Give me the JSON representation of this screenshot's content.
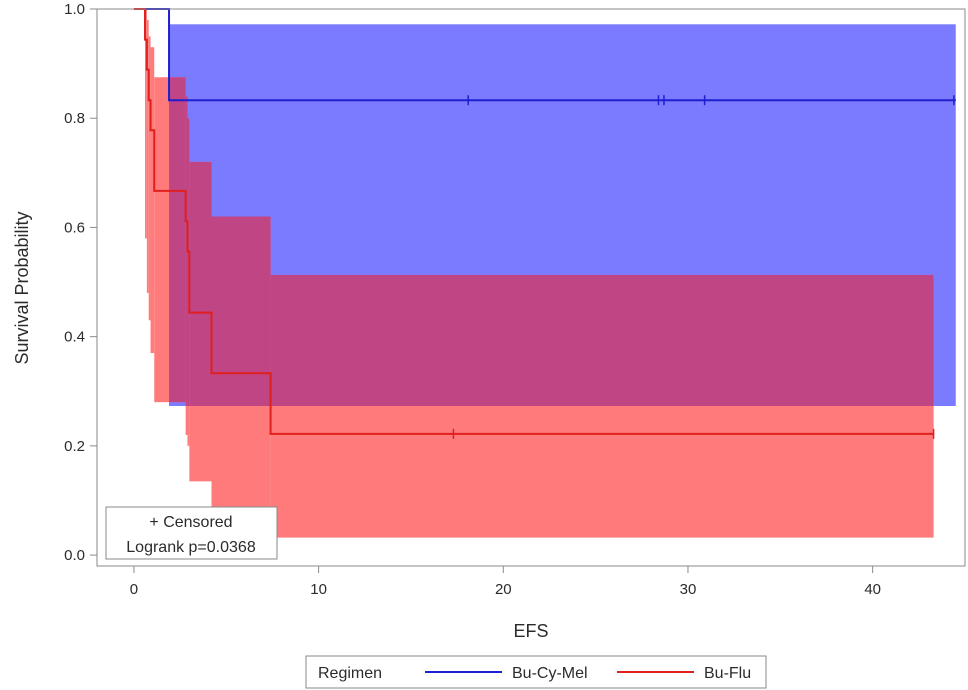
{
  "chart_data": {
    "type": "line",
    "subtype": "kaplan-meier survival curve with confidence bands",
    "xlabel": "EFS",
    "ylabel": "Survival Probability",
    "xlim": [
      -2,
      45
    ],
    "ylim": [
      -0.02,
      1.0
    ],
    "x_ticks": [
      0,
      10,
      20,
      30,
      40
    ],
    "x_tick_labels": [
      "0",
      "10",
      "20",
      "30",
      "40"
    ],
    "y_ticks": [
      0.0,
      0.2,
      0.4,
      0.6,
      0.8,
      1.0
    ],
    "y_tick_labels": [
      "0.0",
      "0.2",
      "0.4",
      "0.6",
      "0.8",
      "1.0"
    ],
    "grid": false,
    "legend": {
      "title": "Regimen",
      "placement": "bottom",
      "entries": [
        "Bu-Cy-Mel",
        "Bu-Flu"
      ]
    },
    "inset": {
      "placement": "bottom-left",
      "lines": [
        "+ Censored",
        "Logrank p=0.0368"
      ]
    },
    "colors": {
      "Bu-Cy-Mel": "#1f1fd0",
      "Bu-Flu": "#e01f1f",
      "Bu-Cy-Mel-band": "#7b7bff",
      "Bu-Flu-band": "#ff7b7b",
      "overlap-band": "#c04585"
    },
    "series": [
      {
        "name": "Bu-Cy-Mel",
        "color": "#1f1fd0",
        "steps": [
          [
            0.0,
            1.0
          ],
          [
            1.9,
            1.0
          ],
          [
            1.9,
            0.833
          ],
          [
            44.5,
            0.833
          ]
        ],
        "censored": [
          18.1,
          28.4,
          28.7,
          30.9,
          44.4
        ],
        "band": [
          {
            "x0": 1.9,
            "x1": 44.5,
            "lower": 0.273,
            "upper": 0.972
          }
        ]
      },
      {
        "name": "Bu-Flu",
        "color": "#e01f1f",
        "steps": [
          [
            0.0,
            1.0
          ],
          [
            0.6,
            1.0
          ],
          [
            0.6,
            0.944
          ],
          [
            0.7,
            0.944
          ],
          [
            0.7,
            0.889
          ],
          [
            0.8,
            0.889
          ],
          [
            0.8,
            0.833
          ],
          [
            0.9,
            0.833
          ],
          [
            0.9,
            0.778
          ],
          [
            1.1,
            0.778
          ],
          [
            1.1,
            0.667
          ],
          [
            2.8,
            0.667
          ],
          [
            2.8,
            0.611
          ],
          [
            2.9,
            0.611
          ],
          [
            2.9,
            0.556
          ],
          [
            3.0,
            0.556
          ],
          [
            3.0,
            0.444
          ],
          [
            4.2,
            0.444
          ],
          [
            4.2,
            0.333
          ],
          [
            7.4,
            0.333
          ],
          [
            7.4,
            0.222
          ],
          [
            43.3,
            0.222
          ]
        ],
        "censored": [
          17.3,
          43.3
        ],
        "band": [
          {
            "x0": 0.6,
            "x1": 0.7,
            "lower": 0.58,
            "upper": 1.0
          },
          {
            "x0": 0.7,
            "x1": 0.8,
            "lower": 0.48,
            "upper": 0.98
          },
          {
            "x0": 0.8,
            "x1": 0.9,
            "lower": 0.43,
            "upper": 0.95
          },
          {
            "x0": 0.9,
            "x1": 1.1,
            "lower": 0.37,
            "upper": 0.93
          },
          {
            "x0": 1.1,
            "x1": 2.8,
            "lower": 0.28,
            "upper": 0.875
          },
          {
            "x0": 2.8,
            "x1": 2.9,
            "lower": 0.22,
            "upper": 0.84
          },
          {
            "x0": 2.9,
            "x1": 3.0,
            "lower": 0.2,
            "upper": 0.8
          },
          {
            "x0": 3.0,
            "x1": 4.2,
            "lower": 0.135,
            "upper": 0.72
          },
          {
            "x0": 4.2,
            "x1": 7.4,
            "lower": 0.07,
            "upper": 0.62
          },
          {
            "x0": 7.4,
            "x1": 43.3,
            "lower": 0.032,
            "upper": 0.513
          }
        ]
      }
    ]
  }
}
